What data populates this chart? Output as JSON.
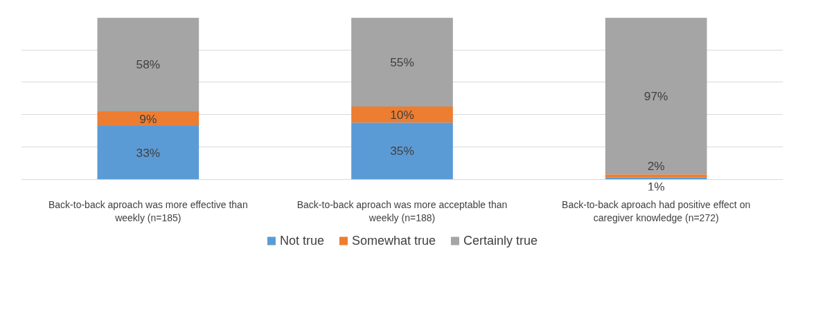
{
  "chart_data": {
    "type": "bar",
    "stacked": true,
    "categories": [
      "Back-to-back aproach was more effective than weekly (n=185)",
      "Back-to-back aproach was more acceptable than weekly (n=188)",
      "Back-to-back aproach had positive effect on caregiver knowledge (n=272)"
    ],
    "series": [
      {
        "name": "Not true",
        "color": "#5b9bd5",
        "values": [
          33,
          35,
          1
        ],
        "value_labels": [
          "33%",
          "35%",
          "1%"
        ]
      },
      {
        "name": "Somewhat true",
        "color": "#ed7d31",
        "values": [
          9,
          10,
          2
        ],
        "value_labels": [
          "9%",
          "10%",
          "2%"
        ]
      },
      {
        "name": "Certainly true",
        "color": "#a5a5a5",
        "values": [
          58,
          55,
          97
        ],
        "value_labels": [
          "58%",
          "55%",
          "97%"
        ]
      }
    ],
    "tick_labels": "x",
    "grid": "y",
    "legend": "bottom"
  }
}
